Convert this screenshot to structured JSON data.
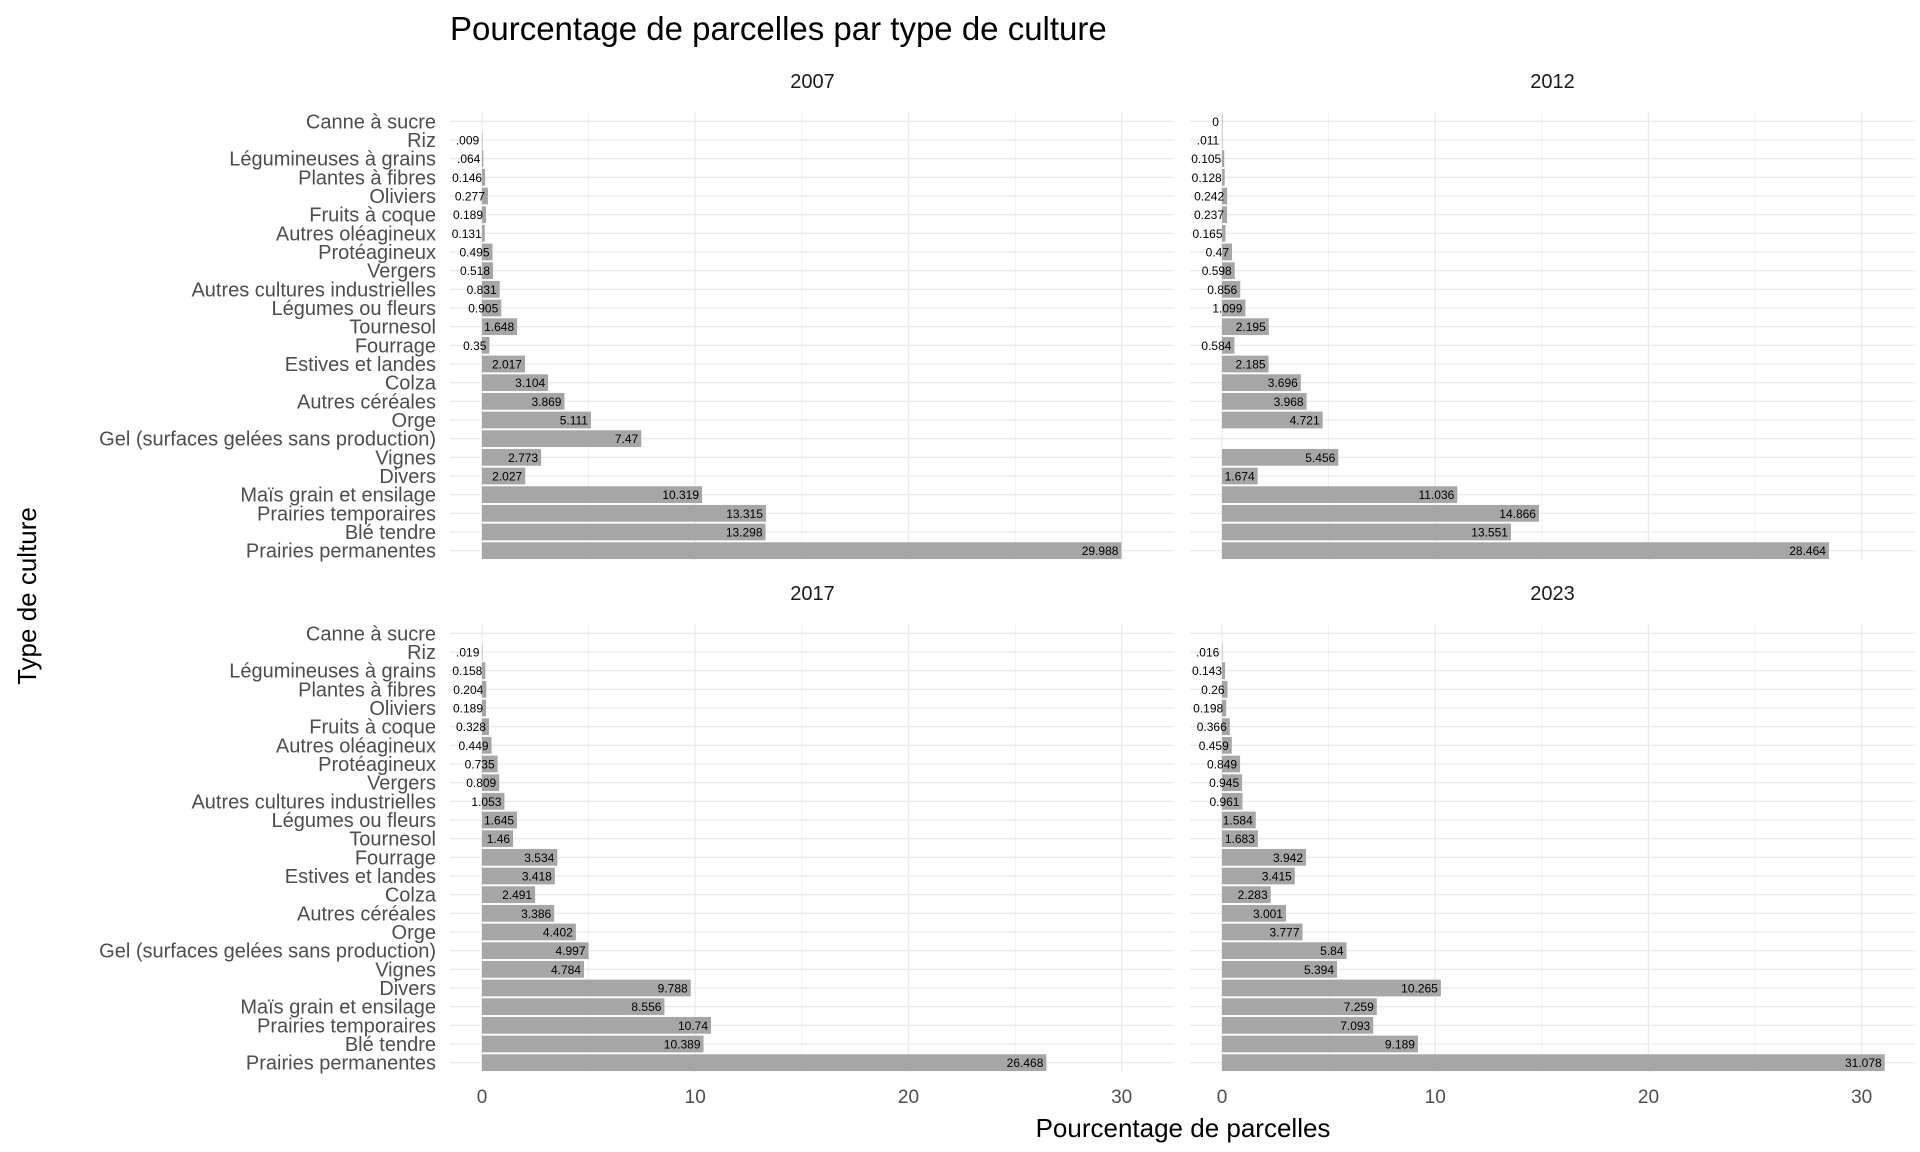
{
  "chart_data": {
    "type": "bar",
    "orientation": "horizontal",
    "title": "Pourcentage de parcelles par type de culture",
    "xlabel": "Pourcentage de parcelles",
    "ylabel": "Type de culture",
    "xlim": [
      -1.5,
      32.5
    ],
    "xticks": [
      0,
      10,
      20,
      30
    ],
    "xtick_labels": [
      "0",
      "10",
      "20",
      "30"
    ],
    "grid": true,
    "colors": {
      "bar": "#a6a6a6",
      "grid": "#ebebeb"
    },
    "categories": [
      "Canne à sucre",
      "Riz",
      "Légumineuses à grains",
      "Plantes à fibres",
      "Oliviers",
      "Fruits à coque",
      "Autres oléagineux",
      "Protéagineux",
      "Vergers",
      "Autres cultures industrielles",
      "Légumes ou fleurs",
      "Tournesol",
      "Fourrage",
      "Estives et landes",
      "Colza",
      "Autres céréales",
      "Orge",
      "Gel (surfaces gelées sans production)",
      "Vignes",
      "Divers",
      "Maïs grain et ensilage",
      "Prairies temporaires",
      "Blé tendre",
      "Prairies permanentes"
    ],
    "facets": [
      {
        "name": "2007",
        "values": [
          null,
          0.009,
          0.064,
          0.146,
          0.277,
          0.189,
          0.131,
          0.495,
          0.518,
          0.831,
          0.905,
          1.648,
          0.35,
          2.017,
          3.104,
          3.869,
          5.111,
          7.47,
          2.773,
          2.027,
          10.319,
          13.315,
          13.298,
          29.988
        ],
        "labels": [
          "",
          ".009",
          ".064",
          "0.146",
          "0.277",
          "0.189",
          "0.131",
          "0.495",
          "0.518",
          "0.831",
          "0.905",
          "1.648",
          "0.35",
          "2.017",
          "3.104",
          "3.869",
          "5.111",
          "7.47",
          "2.773",
          "2.027",
          "10.319",
          "13.315",
          "13.298",
          "29.988"
        ]
      },
      {
        "name": "2012",
        "values": [
          0,
          0.011,
          0.105,
          0.128,
          0.242,
          0.237,
          0.165,
          0.47,
          0.598,
          0.856,
          1.099,
          2.195,
          0.584,
          2.185,
          3.696,
          3.968,
          4.721,
          null,
          5.456,
          1.674,
          11.036,
          14.866,
          13.551,
          28.464
        ],
        "labels": [
          "0",
          ".011",
          "0.105",
          "0.128",
          "0.242",
          "0.237",
          "0.165",
          "0.47",
          "0.598",
          "0.856",
          "1.099",
          "2.195",
          "0.584",
          "2.185",
          "3.696",
          "3.968",
          "4.721",
          "",
          "5.456",
          "1.674",
          "11.036",
          "14.866",
          "13.551",
          "28.464"
        ]
      },
      {
        "name": "2017",
        "values": [
          null,
          0.019,
          0.158,
          0.204,
          0.189,
          0.328,
          0.449,
          0.735,
          0.809,
          1.053,
          1.645,
          1.46,
          3.534,
          3.418,
          2.491,
          3.386,
          4.402,
          4.997,
          4.784,
          9.788,
          8.556,
          10.74,
          10.389,
          26.468
        ],
        "labels": [
          "",
          ".019",
          "0.158",
          "0.204",
          "0.189",
          "0.328",
          "0.449",
          "0.735",
          "0.809",
          "1.053",
          "1.645",
          "1.46",
          "3.534",
          "3.418",
          "2.491",
          "3.386",
          "4.402",
          "4.997",
          "4.784",
          "9.788",
          "8.556",
          "10.74",
          "10.389",
          "26.468"
        ]
      },
      {
        "name": "2023",
        "values": [
          null,
          0.016,
          0.143,
          0.26,
          0.198,
          0.366,
          0.459,
          0.849,
          0.945,
          0.961,
          1.584,
          1.683,
          3.942,
          3.415,
          2.283,
          3.001,
          3.777,
          5.84,
          5.394,
          10.265,
          7.259,
          7.093,
          9.189,
          31.078
        ],
        "labels": [
          "",
          ".016",
          "0.143",
          "0.26",
          "0.198",
          "0.366",
          "0.459",
          "0.849",
          "0.945",
          "0.961",
          "1.584",
          "1.683",
          "3.942",
          "3.415",
          "2.283",
          "3.001",
          "3.777",
          "5.84",
          "5.394",
          "10.265",
          "7.259",
          "7.093",
          "9.189",
          "31.078"
        ]
      }
    ]
  }
}
